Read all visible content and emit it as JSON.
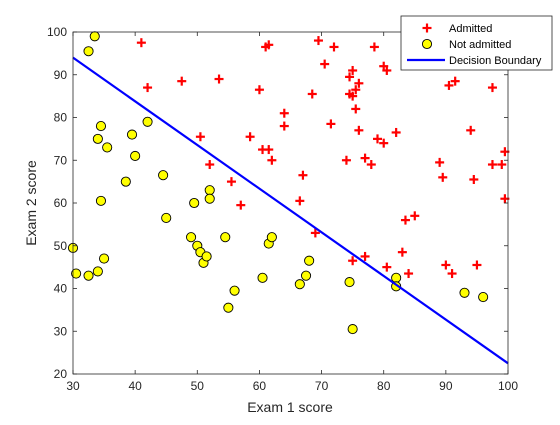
{
  "chart_data": {
    "type": "scatter",
    "title": "",
    "xlabel": "Exam 1 score",
    "ylabel": "Exam 2 score",
    "xlim": [
      30,
      100
    ],
    "ylim": [
      20,
      100
    ],
    "xticks": [
      30,
      40,
      50,
      60,
      70,
      80,
      90,
      100
    ],
    "yticks": [
      20,
      30,
      40,
      50,
      60,
      70,
      80,
      90,
      100
    ],
    "grid": false,
    "legend_position": "top-right",
    "series": [
      {
        "name": "Admitted",
        "marker": "plus",
        "color": "#ff0000",
        "points": [
          [
            41.0,
            97.5
          ],
          [
            42.0,
            87.0
          ],
          [
            47.5,
            88.5
          ],
          [
            50.5,
            75.5
          ],
          [
            52.0,
            69.0
          ],
          [
            53.5,
            89.0
          ],
          [
            55.5,
            65.0
          ],
          [
            57.0,
            59.5
          ],
          [
            58.5,
            75.5
          ],
          [
            60.0,
            86.5
          ],
          [
            60.5,
            72.5
          ],
          [
            61.0,
            96.5
          ],
          [
            61.5,
            97.0
          ],
          [
            61.5,
            72.5
          ],
          [
            62.0,
            70.0
          ],
          [
            64.0,
            81.0
          ],
          [
            64.0,
            78.0
          ],
          [
            66.5,
            60.5
          ],
          [
            67.0,
            66.5
          ],
          [
            68.5,
            85.5
          ],
          [
            69.5,
            98.0
          ],
          [
            69.0,
            53.0
          ],
          [
            70.5,
            92.5
          ],
          [
            71.5,
            78.5
          ],
          [
            72.0,
            96.5
          ],
          [
            74.0,
            70.0
          ],
          [
            74.5,
            89.5
          ],
          [
            74.5,
            85.5
          ],
          [
            75.0,
            91.0
          ],
          [
            75.0,
            85.0
          ],
          [
            75.5,
            86.5
          ],
          [
            75.5,
            82.0
          ],
          [
            76.0,
            88.0
          ],
          [
            76.0,
            77.0
          ],
          [
            75.0,
            46.5
          ],
          [
            77.0,
            70.5
          ],
          [
            77.0,
            47.5
          ],
          [
            78.0,
            69.0
          ],
          [
            78.5,
            96.5
          ],
          [
            79.0,
            75.0
          ],
          [
            80.0,
            74.0
          ],
          [
            80.0,
            92.0
          ],
          [
            80.5,
            91.0
          ],
          [
            80.5,
            45.0
          ],
          [
            82.0,
            76.5
          ],
          [
            83.0,
            48.5
          ],
          [
            83.5,
            56.0
          ],
          [
            84.0,
            43.5
          ],
          [
            85.0,
            57.0
          ],
          [
            89.0,
            69.5
          ],
          [
            89.5,
            66.0
          ],
          [
            90.0,
            45.5
          ],
          [
            90.5,
            87.5
          ],
          [
            91.0,
            43.5
          ],
          [
            91.5,
            88.5
          ],
          [
            94.0,
            77.0
          ],
          [
            94.5,
            65.5
          ],
          [
            95.0,
            45.5
          ],
          [
            97.5,
            87.0
          ],
          [
            97.5,
            69.0
          ],
          [
            99.0,
            69.0
          ],
          [
            99.5,
            72.0
          ],
          [
            99.5,
            61.0
          ]
        ]
      },
      {
        "name": "Not admitted",
        "marker": "circle",
        "color": "#ffff00",
        "points": [
          [
            30.0,
            49.5
          ],
          [
            30.5,
            43.5
          ],
          [
            32.5,
            95.5
          ],
          [
            32.5,
            43.0
          ],
          [
            33.5,
            99.0
          ],
          [
            34.0,
            75.0
          ],
          [
            34.5,
            78.0
          ],
          [
            34.0,
            44.0
          ],
          [
            34.5,
            60.5
          ],
          [
            35.0,
            47.0
          ],
          [
            35.5,
            73.0
          ],
          [
            38.5,
            65.0
          ],
          [
            39.5,
            76.0
          ],
          [
            40.0,
            71.0
          ],
          [
            42.0,
            79.0
          ],
          [
            44.5,
            66.5
          ],
          [
            45.0,
            56.5
          ],
          [
            49.0,
            52.0
          ],
          [
            49.5,
            60.0
          ],
          [
            50.0,
            50.0
          ],
          [
            50.5,
            48.5
          ],
          [
            51.0,
            46.0
          ],
          [
            51.5,
            47.5
          ],
          [
            52.0,
            63.0
          ],
          [
            52.0,
            61.0
          ],
          [
            54.5,
            52.0
          ],
          [
            55.0,
            35.5
          ],
          [
            56.0,
            39.5
          ],
          [
            60.5,
            42.5
          ],
          [
            61.5,
            50.5
          ],
          [
            62.0,
            52.0
          ],
          [
            66.5,
            41.0
          ],
          [
            67.5,
            43.0
          ],
          [
            68.0,
            46.5
          ],
          [
            74.5,
            41.5
          ],
          [
            75.0,
            30.5
          ],
          [
            82.0,
            42.5
          ],
          [
            82.0,
            40.5
          ],
          [
            93.0,
            39.0
          ],
          [
            96.0,
            38.0
          ]
        ]
      },
      {
        "name": "Decision Boundary",
        "marker": "line",
        "color": "#0000ff",
        "points": [
          [
            30.0,
            94.0
          ],
          [
            100.0,
            22.5
          ]
        ]
      }
    ]
  }
}
